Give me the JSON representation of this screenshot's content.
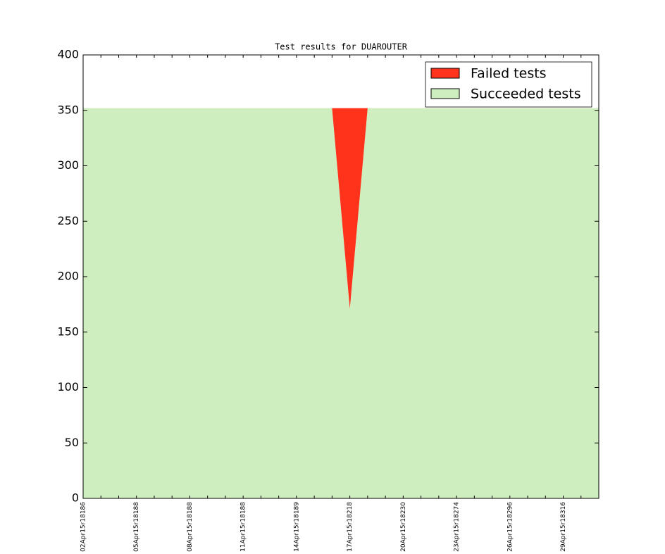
{
  "chart_data": {
    "type": "stacked-area",
    "title": "Test results for DUAROUTER",
    "categories": [
      "02Apr15r18186",
      null,
      null,
      "05Apr15r18188",
      null,
      null,
      "08Apr15r18188",
      null,
      null,
      "11Apr15r18188",
      null,
      null,
      "14Apr15r18189",
      null,
      null,
      "17Apr15r18218",
      null,
      null,
      "20Apr15r18230",
      null,
      null,
      "23Apr15r18274",
      null,
      null,
      "26Apr15r18296",
      null,
      null,
      "29Apr15r18316",
      null,
      null
    ],
    "series": [
      {
        "name": "Succeeded tests",
        "color": "#cfeebf",
        "values": [
          352,
          352,
          352,
          352,
          352,
          352,
          352,
          352,
          352,
          352,
          352,
          352,
          352,
          352,
          352,
          171,
          352,
          352,
          352,
          352,
          352,
          352,
          352,
          352,
          352,
          352,
          352,
          352,
          352,
          352
        ]
      },
      {
        "name": "Failed tests",
        "color": "#ff321b",
        "values": [
          0,
          0,
          0,
          0,
          0,
          0,
          0,
          0,
          0,
          0,
          0,
          0,
          0,
          0,
          0,
          181,
          0,
          0,
          0,
          0,
          0,
          0,
          0,
          0,
          0,
          0,
          0,
          0,
          0,
          0
        ]
      }
    ],
    "ylim": [
      0,
      400
    ],
    "yticks": [
      0,
      50,
      100,
      150,
      200,
      250,
      300,
      350,
      400
    ],
    "grid": false,
    "legend": "upper right"
  }
}
